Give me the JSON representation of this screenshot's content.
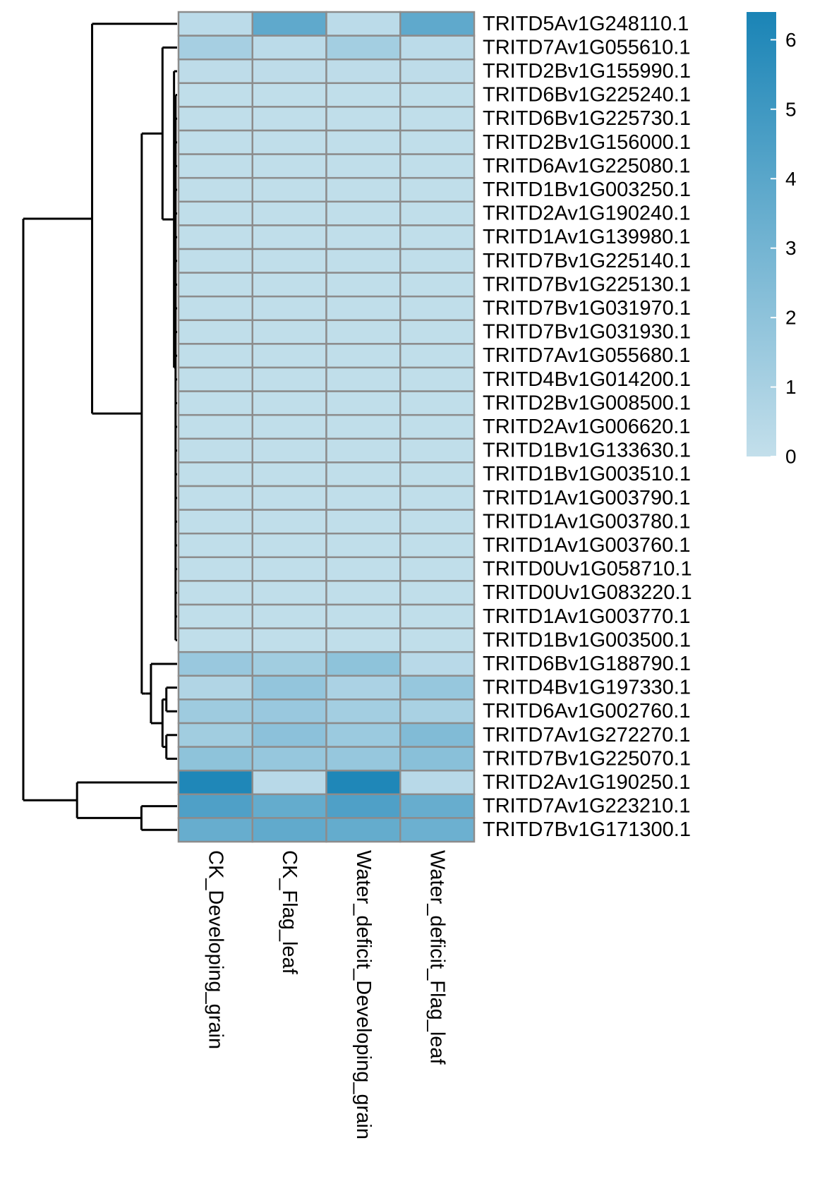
{
  "chart_data": {
    "type": "heatmap",
    "columns": [
      "CK_Developing_grain",
      "CK_Flag_leaf",
      "Water_deficit_Developing_grain",
      "Water_deficit_Flag_leaf"
    ],
    "rows": [
      "TRITD5Av1G248110.1",
      "TRITD7Av1G055610.1",
      "TRITD2Bv1G155990.1",
      "TRITD6Bv1G225240.1",
      "TRITD6Bv1G225730.1",
      "TRITD2Bv1G156000.1",
      "TRITD6Av1G225080.1",
      "TRITD1Bv1G003250.1",
      "TRITD2Av1G190240.1",
      "TRITD1Av1G139980.1",
      "TRITD7Bv1G225140.1",
      "TRITD7Bv1G225130.1",
      "TRITD7Bv1G031970.1",
      "TRITD7Bv1G031930.1",
      "TRITD7Av1G055680.1",
      "TRITD4Bv1G014200.1",
      "TRITD2Bv1G008500.1",
      "TRITD2Av1G006620.1",
      "TRITD1Bv1G133630.1",
      "TRITD1Bv1G003510.1",
      "TRITD1Av1G003790.1",
      "TRITD1Av1G003780.1",
      "TRITD1Av1G003760.1",
      "TRITD0Uv1G058710.1",
      "TRITD0Uv1G083220.1",
      "TRITD1Av1G003770.1",
      "TRITD1Bv1G003500.1",
      "TRITD6Bv1G188790.1",
      "TRITD4Bv1G197330.1",
      "TRITD6Av1G002760.1",
      "TRITD7Av1G272270.1",
      "TRITD7Bv1G225070.1",
      "TRITD2Av1G190250.1",
      "TRITD7Av1G223210.1",
      "TRITD7Bv1G171300.1"
    ],
    "values": [
      [
        0.3,
        3.8,
        0.3,
        3.8
      ],
      [
        1.1,
        0.3,
        1.2,
        0.3
      ],
      [
        0.2,
        0.2,
        0.2,
        0.2
      ],
      [
        0.1,
        0.1,
        0.1,
        0.1
      ],
      [
        0.1,
        0.1,
        0.1,
        0.1
      ],
      [
        0.1,
        0.1,
        0.1,
        0.1
      ],
      [
        0.1,
        0.1,
        0.1,
        0.1
      ],
      [
        0.1,
        0.1,
        0.1,
        0.1
      ],
      [
        0.1,
        0.1,
        0.1,
        0.1
      ],
      [
        0.1,
        0.1,
        0.1,
        0.1
      ],
      [
        0.1,
        0.1,
        0.1,
        0.1
      ],
      [
        0.1,
        0.1,
        0.1,
        0.1
      ],
      [
        0.1,
        0.1,
        0.1,
        0.1
      ],
      [
        0.1,
        0.1,
        0.1,
        0.1
      ],
      [
        0.1,
        0.1,
        0.1,
        0.1
      ],
      [
        0.1,
        0.1,
        0.1,
        0.1
      ],
      [
        0.1,
        0.1,
        0.1,
        0.1
      ],
      [
        0.1,
        0.1,
        0.1,
        0.1
      ],
      [
        0.1,
        0.1,
        0.1,
        0.1
      ],
      [
        0.1,
        0.1,
        0.1,
        0.1
      ],
      [
        0.1,
        0.1,
        0.1,
        0.1
      ],
      [
        0.1,
        0.1,
        0.1,
        0.1
      ],
      [
        0.1,
        0.1,
        0.1,
        0.1
      ],
      [
        0.1,
        0.1,
        0.1,
        0.1
      ],
      [
        0.1,
        0.1,
        0.1,
        0.1
      ],
      [
        0.1,
        0.1,
        0.1,
        0.1
      ],
      [
        0.1,
        0.1,
        0.1,
        0.1
      ],
      [
        1.6,
        1.3,
        2.0,
        0.4
      ],
      [
        0.7,
        1.8,
        0.9,
        1.7
      ],
      [
        1.4,
        1.6,
        1.2,
        1.0
      ],
      [
        1.3,
        2.1,
        1.5,
        2.5
      ],
      [
        2.0,
        1.7,
        1.7,
        2.2
      ],
      [
        6.2,
        0.4,
        6.2,
        0.4
      ],
      [
        4.4,
        3.6,
        4.4,
        3.5
      ],
      [
        3.5,
        3.7,
        3.6,
        3.3
      ]
    ],
    "color_scale": {
      "min": 0,
      "max": 6.4,
      "low_color": "#c3dfeb",
      "high_color": "#1a84b6"
    },
    "cell_border_color": "#8c8c8c",
    "legend_ticks": [
      0,
      1,
      2,
      3,
      4,
      5,
      6
    ],
    "row_dendrogram": true,
    "legend_placement": "right"
  }
}
